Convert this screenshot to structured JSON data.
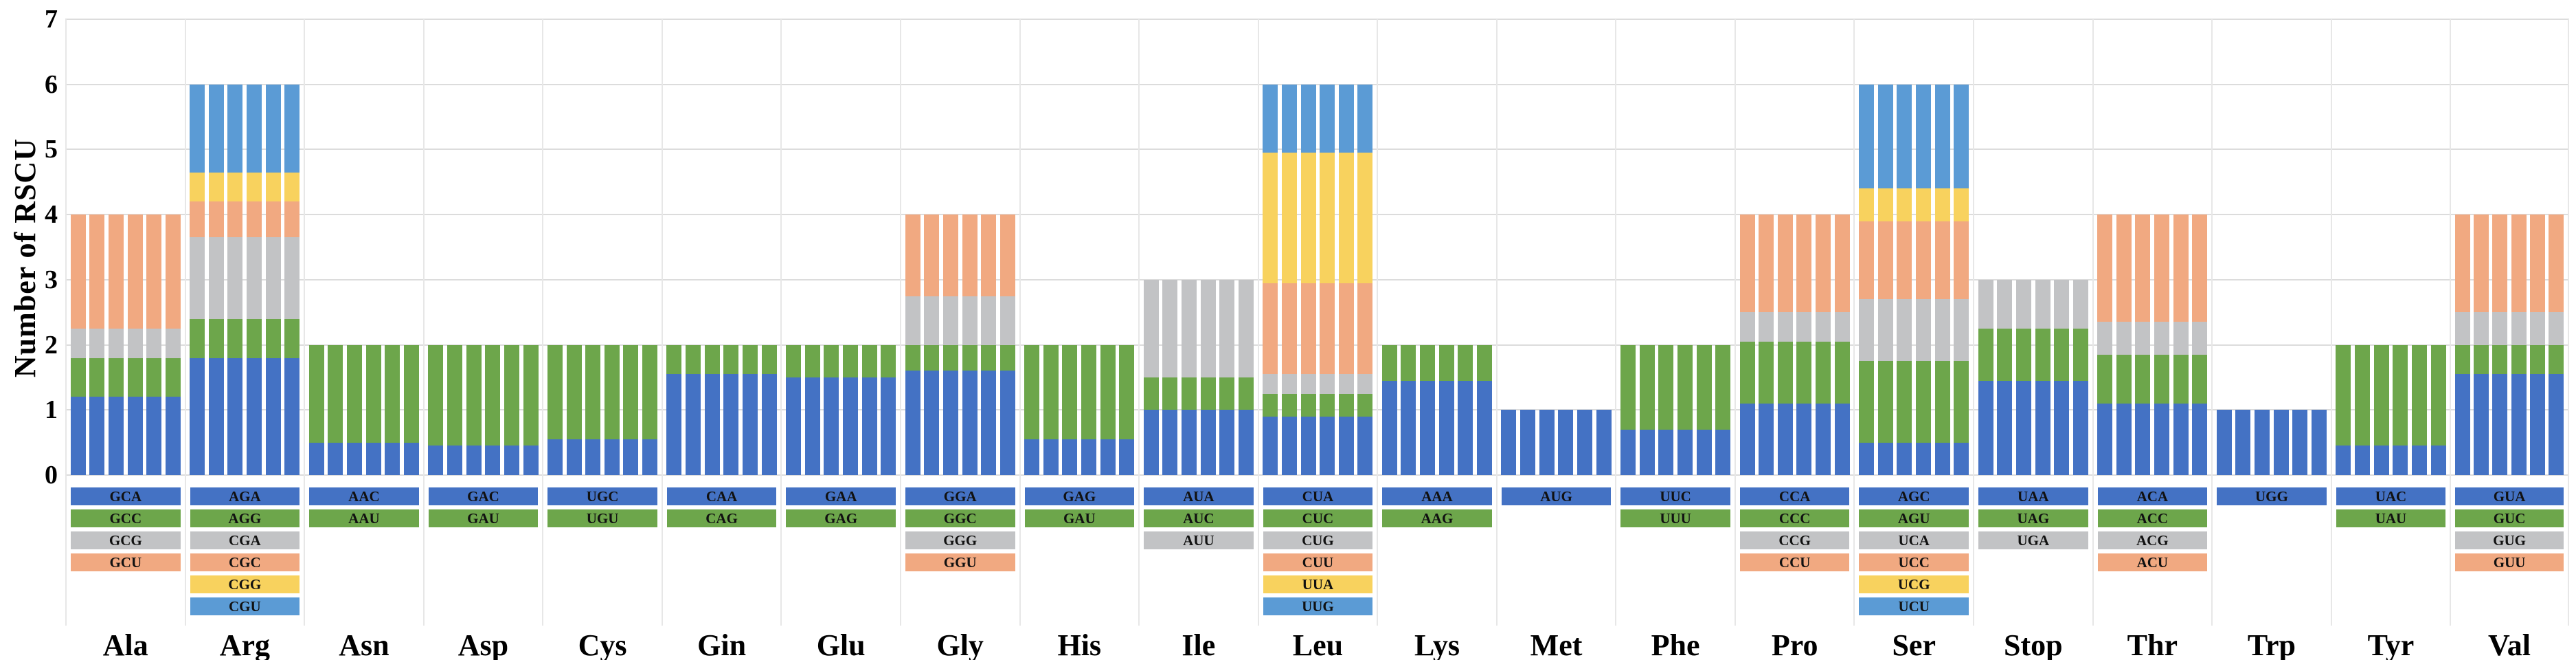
{
  "chart_data": {
    "type": "bar",
    "stacked": true,
    "title": "",
    "ylabel": "Number of RSCU",
    "xlabel": "",
    "ylim": [
      0,
      7
    ],
    "yticks": [
      0,
      1,
      2,
      3,
      4,
      5,
      6,
      7
    ],
    "grid": true,
    "gridline_color": "#dcdcdc",
    "separator_color": "#e7e7e7",
    "bars_per_group": 6,
    "segment_colors": [
      "#4472c4",
      "#6da64b",
      "#c2c3c5",
      "#f1a981",
      "#f8d25e",
      "#5b9bd5"
    ],
    "groups": [
      {
        "name": "Ala",
        "codons": [
          "GCA",
          "GCC",
          "GCG",
          "GCU"
        ],
        "values": [
          1.2,
          0.6,
          0.45,
          1.75
        ]
      },
      {
        "name": "Arg",
        "codons": [
          "AGA",
          "AGG",
          "CGA",
          "CGC",
          "CGG",
          "CGU"
        ],
        "values": [
          1.8,
          0.6,
          1.25,
          0.55,
          0.45,
          1.35
        ]
      },
      {
        "name": "Asn",
        "codons": [
          "AAC",
          "AAU"
        ],
        "values": [
          0.5,
          1.5
        ]
      },
      {
        "name": "Asp",
        "codons": [
          "GAC",
          "GAU"
        ],
        "values": [
          0.45,
          1.55
        ]
      },
      {
        "name": "Cys",
        "codons": [
          "UGC",
          "UGU"
        ],
        "values": [
          0.55,
          1.45
        ]
      },
      {
        "name": "Gin",
        "codons": [
          "CAA",
          "CAG"
        ],
        "values": [
          1.55,
          0.45
        ]
      },
      {
        "name": "Glu",
        "codons": [
          "GAA",
          "GAG"
        ],
        "values": [
          1.5,
          0.5
        ]
      },
      {
        "name": "Gly",
        "codons": [
          "GGA",
          "GGC",
          "GGG",
          "GGU"
        ],
        "values": [
          1.6,
          0.4,
          0.75,
          1.25
        ]
      },
      {
        "name": "His",
        "codons": [
          "GAG",
          "GAU"
        ],
        "values": [
          0.55,
          1.45
        ]
      },
      {
        "name": "Ile",
        "codons": [
          "AUA",
          "AUC",
          "AUU"
        ],
        "values": [
          1.0,
          0.5,
          1.5
        ]
      },
      {
        "name": "Leu",
        "codons": [
          "CUA",
          "CUC",
          "CUG",
          "CUU",
          "UUA",
          "UUG"
        ],
        "values": [
          0.9,
          0.35,
          0.3,
          1.4,
          2.0,
          1.05
        ]
      },
      {
        "name": "Lys",
        "codons": [
          "AAA",
          "AAG"
        ],
        "values": [
          1.45,
          0.55
        ]
      },
      {
        "name": "Met",
        "codons": [
          "AUG"
        ],
        "values": [
          1.0
        ]
      },
      {
        "name": "Phe",
        "codons": [
          "UUC",
          "UUU"
        ],
        "values": [
          0.7,
          1.3
        ]
      },
      {
        "name": "Pro",
        "codons": [
          "CCA",
          "CCC",
          "CCG",
          "CCU"
        ],
        "values": [
          1.1,
          0.95,
          0.45,
          1.5
        ]
      },
      {
        "name": "Ser",
        "codons": [
          "AGC",
          "AGU",
          "UCA",
          "UCC",
          "UCG",
          "UCU"
        ],
        "values": [
          0.5,
          1.25,
          0.95,
          1.2,
          0.5,
          1.6
        ]
      },
      {
        "name": "Stop",
        "codons": [
          "UAA",
          "UAG",
          "UGA"
        ],
        "values": [
          1.45,
          0.8,
          0.75
        ]
      },
      {
        "name": "Thr",
        "codons": [
          "ACA",
          "ACC",
          "ACG",
          "ACU"
        ],
        "values": [
          1.1,
          0.75,
          0.5,
          1.65
        ]
      },
      {
        "name": "Trp",
        "codons": [
          "UGG"
        ],
        "values": [
          1.0
        ]
      },
      {
        "name": "Tyr",
        "codons": [
          "UAC",
          "UAU"
        ],
        "values": [
          0.45,
          1.55
        ]
      },
      {
        "name": "Val",
        "codons": [
          "GUA",
          "GUC",
          "GUG",
          "GUU"
        ],
        "values": [
          1.55,
          0.45,
          0.5,
          1.5
        ]
      }
    ]
  }
}
